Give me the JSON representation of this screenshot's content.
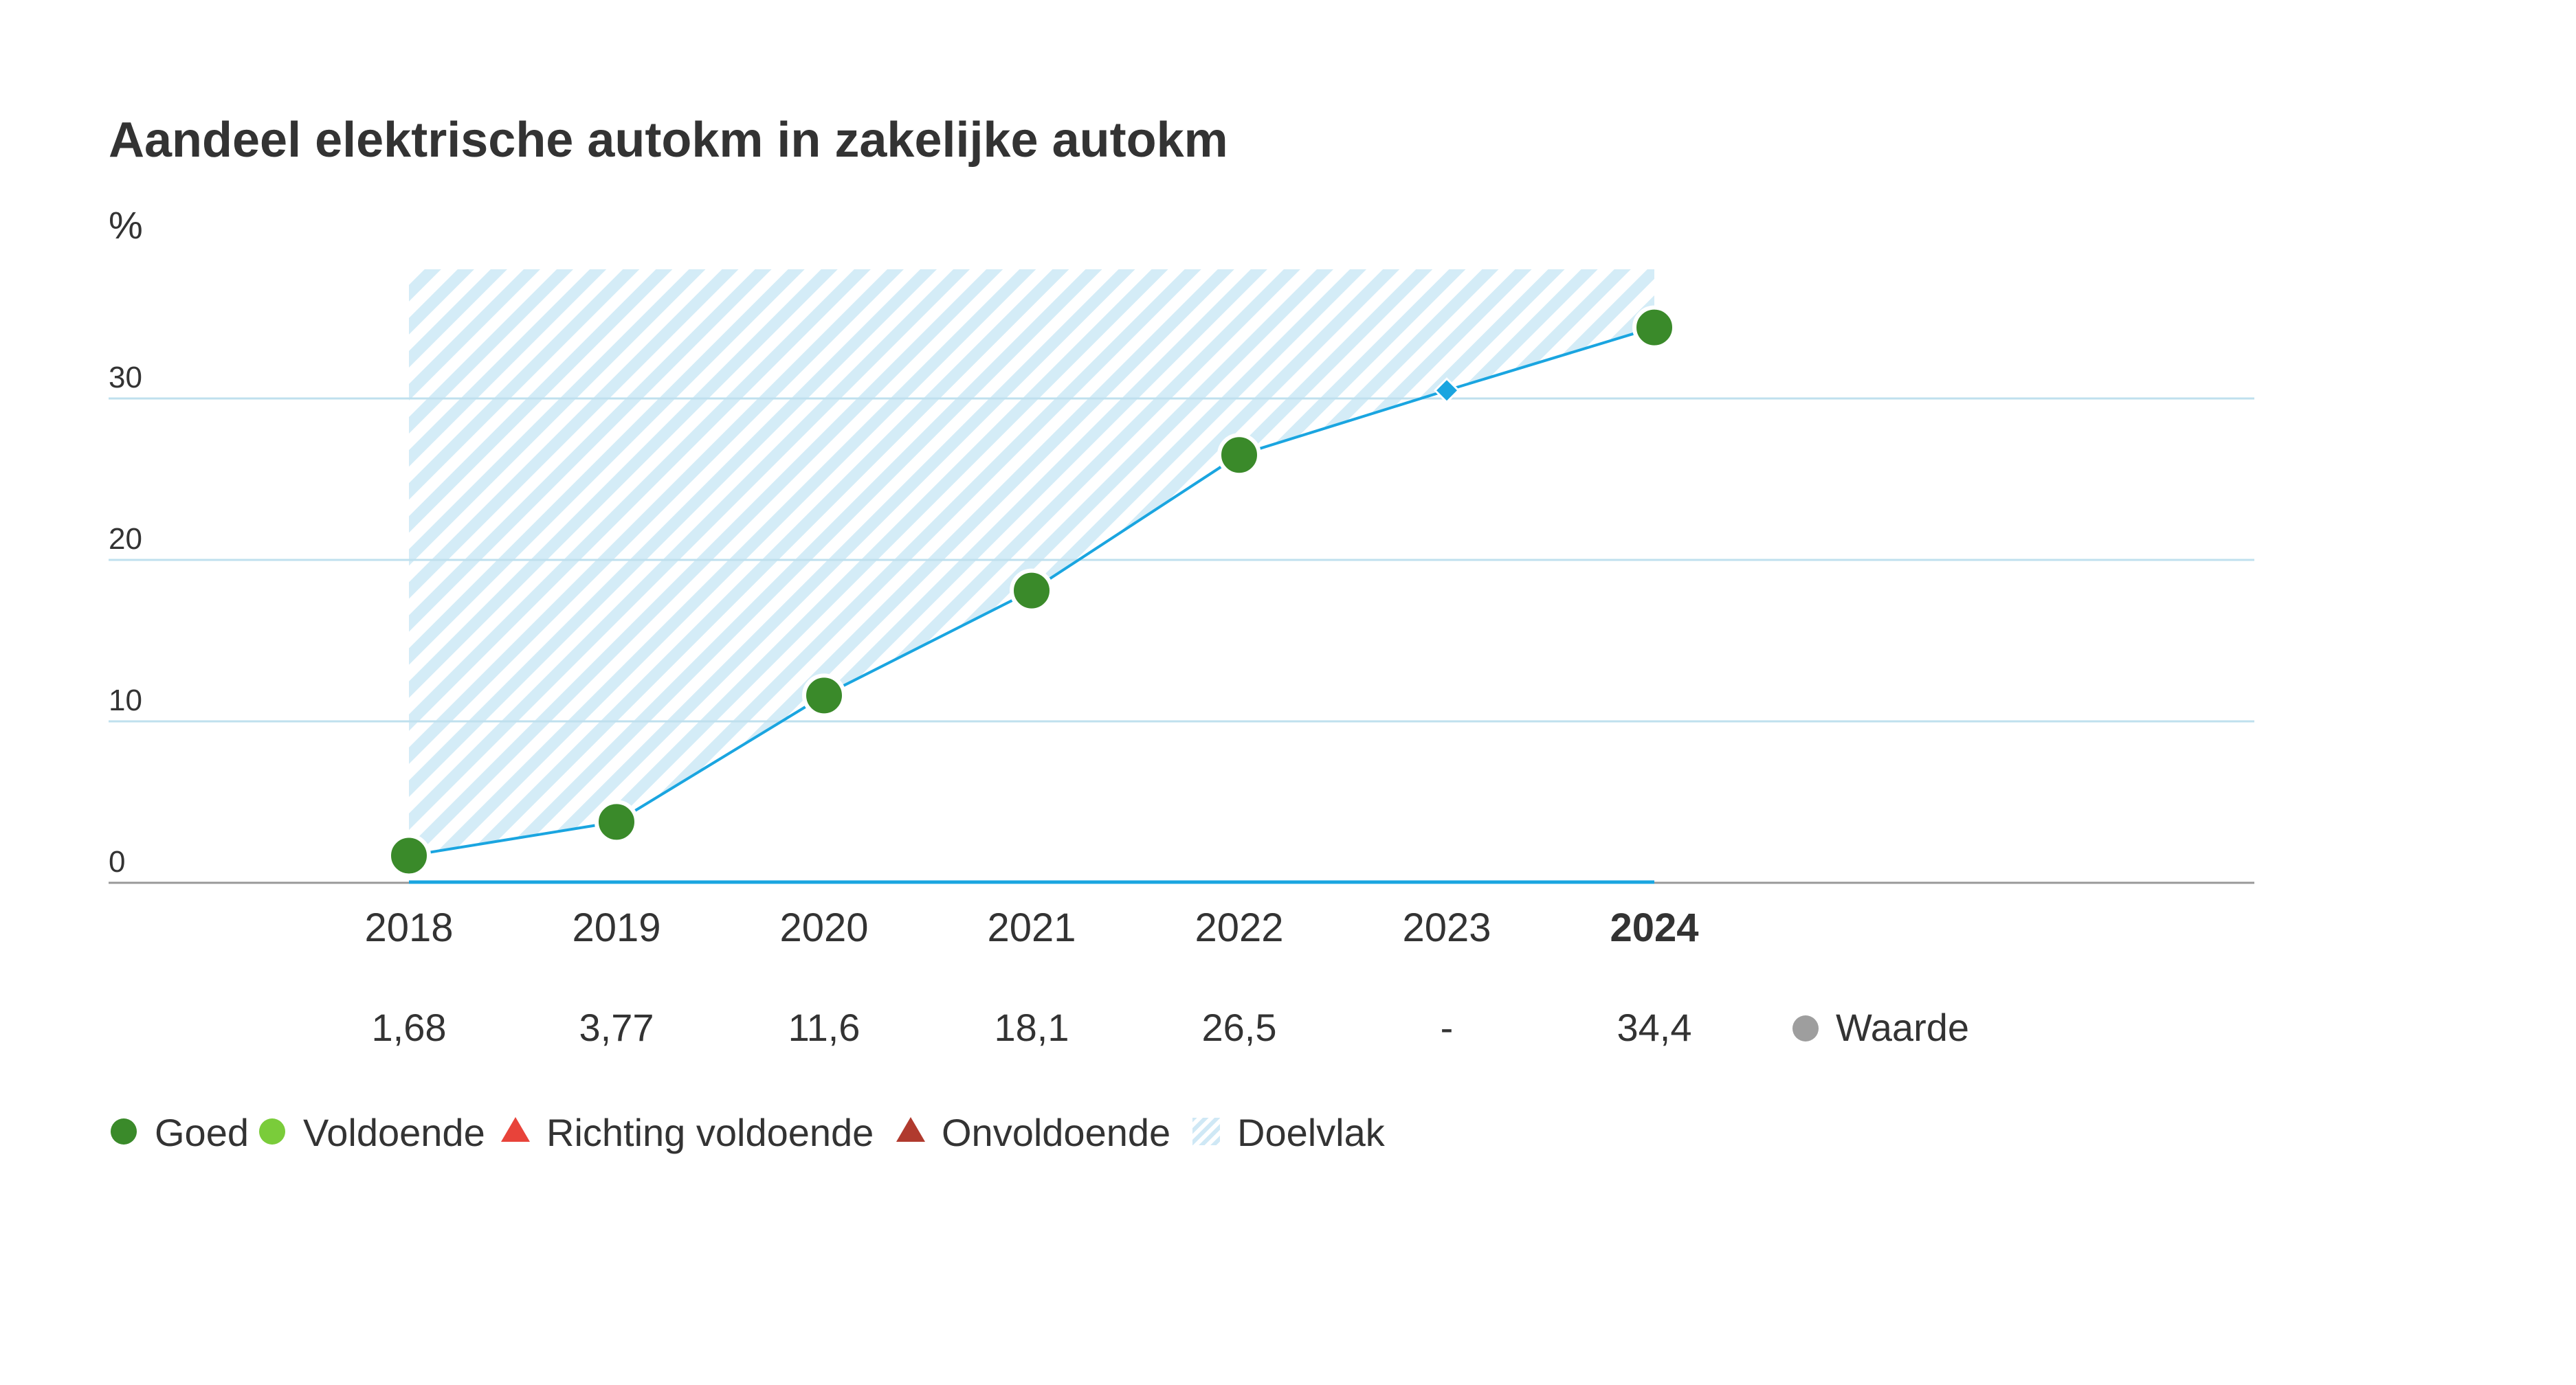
{
  "chart_data": {
    "type": "line",
    "title": "Aandeel elektrische autokm in zakelijke autokm",
    "ylabel": "%",
    "ylim": [
      0,
      38
    ],
    "yticks": [
      0,
      10,
      20,
      30
    ],
    "categories": [
      "2018",
      "2019",
      "2020",
      "2021",
      "2022",
      "2023",
      "2024"
    ],
    "highlight_category": "2024",
    "series": [
      {
        "name": "Waarde",
        "values": [
          1.68,
          3.77,
          11.6,
          18.1,
          26.5,
          null,
          34.4
        ],
        "status": [
          "Goed",
          "Goed",
          "Goed",
          "Goed",
          "Goed",
          null,
          "Goed"
        ],
        "interpolated": {
          "category": "2023",
          "value": 30.5
        }
      }
    ],
    "value_labels": [
      "1,68",
      "3,77",
      "11,6",
      "18,1",
      "26,5",
      "-",
      "34,4"
    ],
    "value_row_label": "Waarde",
    "target_area": {
      "name": "Doelvlak",
      "x_from": "2018",
      "x_to": "2024",
      "ceiling": 38
    },
    "legend": [
      {
        "label": "Goed",
        "shape": "circle",
        "color": "#3a8a2a"
      },
      {
        "label": "Voldoende",
        "shape": "circle",
        "color": "#7acc3a"
      },
      {
        "label": "Richting voldoende",
        "shape": "triangle",
        "color": "#e8433a"
      },
      {
        "label": "Onvoldoende",
        "shape": "triangle",
        "color": "#b03a2e"
      },
      {
        "label": "Doelvlak",
        "shape": "hatch",
        "color": "#d4ecf7"
      }
    ],
    "legend_placement": "bottom",
    "grid": true,
    "colors": {
      "line": "#1aa5e0",
      "grid": "#bfe0ee",
      "axis": "#999999",
      "goed": "#3a8a2a",
      "hatch": "#d4ecf7",
      "waarde_dot": "#9e9e9e"
    }
  }
}
